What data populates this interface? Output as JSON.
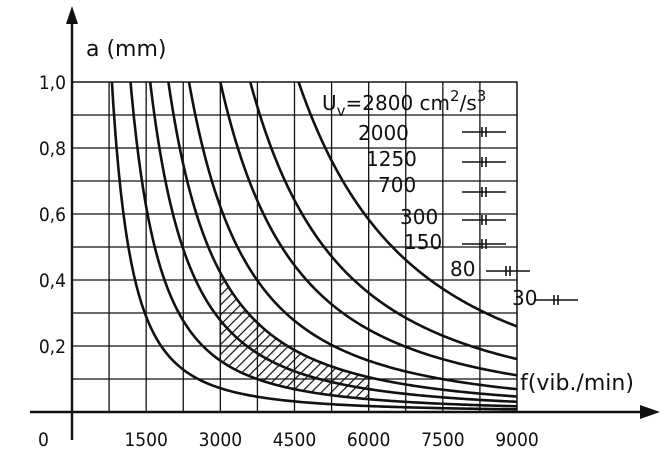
{
  "chart_data": {
    "type": "line",
    "title": "",
    "ylabel": "a (mm)",
    "xlabel": "f(vib./min)",
    "xlim": [
      0,
      9000
    ],
    "ylim": [
      0,
      1.0
    ],
    "x_ticks": [
      "1500",
      "3000",
      "4500",
      "6000",
      "7500",
      "9000"
    ],
    "x_origin_label": "0",
    "y_ticks": [
      "0,2",
      "0,4",
      "0,6",
      "0,8",
      "1,0"
    ],
    "grid": true,
    "curve_formula": "a = K / f^2",
    "series": [
      {
        "name": "Uv=2800 cm2/s3",
        "label_main": "U",
        "label_sub": "v",
        "label_rest": "=2800 cm",
        "label_sup": "2",
        "label_tail": "/s",
        "label_sup2": "3",
        "K": 21000000
      },
      {
        "name": "2000",
        "label_main": "2000",
        "K": 13000000
      },
      {
        "name": "1250",
        "label_main": "1250",
        "K": 9000000
      },
      {
        "name": "700",
        "label_main": "700",
        "K": 5600000
      },
      {
        "name": "300",
        "label_main": "300",
        "K": 3800000
      },
      {
        "name": "150",
        "label_main": "150",
        "K": 2500000
      },
      {
        "name": "80",
        "label_main": "80",
        "K": 1400000
      },
      {
        "name": "30",
        "label_main": "30",
        "K": 650000
      }
    ],
    "hatched_region": {
      "x_from": 3000,
      "x_to": 6000,
      "upper_K": 3800000,
      "lower_K": 1400000
    }
  }
}
